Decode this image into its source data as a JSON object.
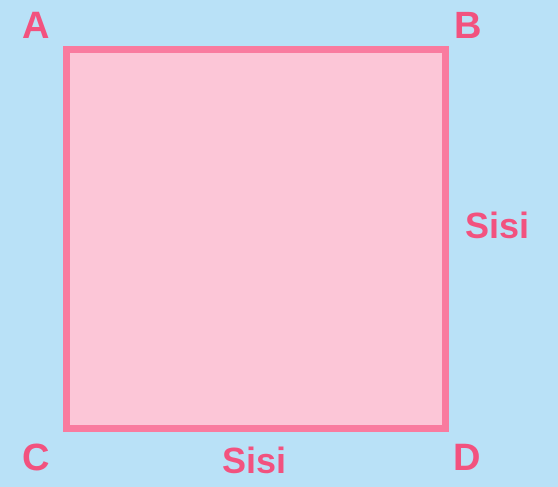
{
  "diagram": {
    "vertices": {
      "top_left": "A",
      "top_right": "B",
      "bottom_left": "C",
      "bottom_right": "D"
    },
    "side_labels": {
      "right": "Sisi",
      "bottom": "Sisi"
    },
    "colors": {
      "background": "#b9e1f7",
      "square_fill": "#fcc6d7",
      "square_border": "#f97b9f",
      "label_text": "#f2527f"
    }
  }
}
